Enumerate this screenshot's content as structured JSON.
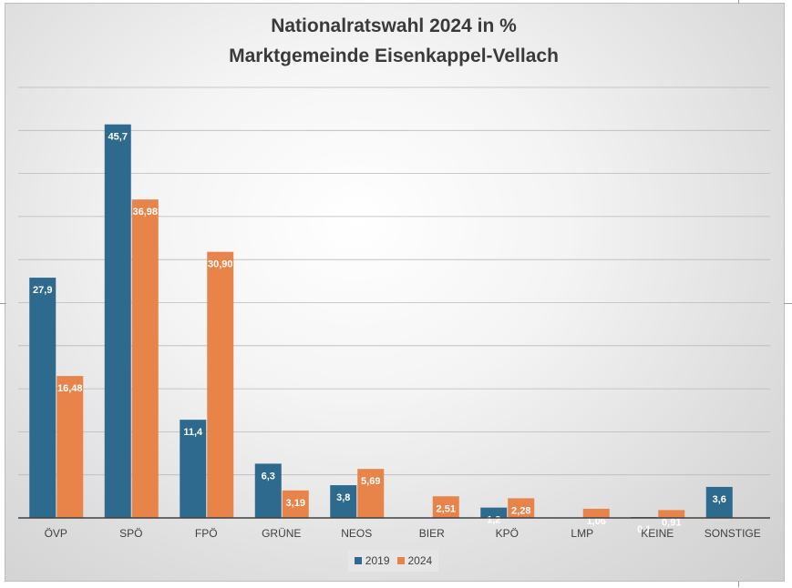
{
  "chart_data": {
    "type": "bar",
    "title": "Nationalratswahl 2024 in %",
    "subtitle": "Marktgemeinde Eisenkappel-Vellach",
    "categories": [
      "ÖVP",
      "SPÖ",
      "FPÖ",
      "GRÜNE",
      "NEOS",
      "BIER",
      "KPÖ",
      "LMP",
      "KEINE",
      "SONSTIGE"
    ],
    "series": [
      {
        "name": "2019",
        "color": "#2e6a8e",
        "values": [
          27.9,
          45.7,
          11.4,
          6.3,
          3.8,
          null,
          1.2,
          null,
          0.1,
          3.6
        ],
        "labels": [
          "27,9",
          "45,7",
          "11,4",
          "6,3",
          "3,8",
          "",
          "1,2",
          "",
          "0,1",
          "3,6"
        ]
      },
      {
        "name": "2024",
        "color": "#e8834a",
        "values": [
          16.48,
          36.98,
          30.9,
          3.19,
          5.69,
          2.51,
          2.28,
          1.06,
          0.91,
          null
        ],
        "labels": [
          "16,48",
          "36,98",
          "30,90",
          "3,19",
          "5,69",
          "2,51",
          "2,28",
          "1,06",
          "0,91",
          ""
        ]
      }
    ],
    "ylim": [
      0,
      50
    ],
    "grid": true,
    "legend_position": "bottom"
  }
}
